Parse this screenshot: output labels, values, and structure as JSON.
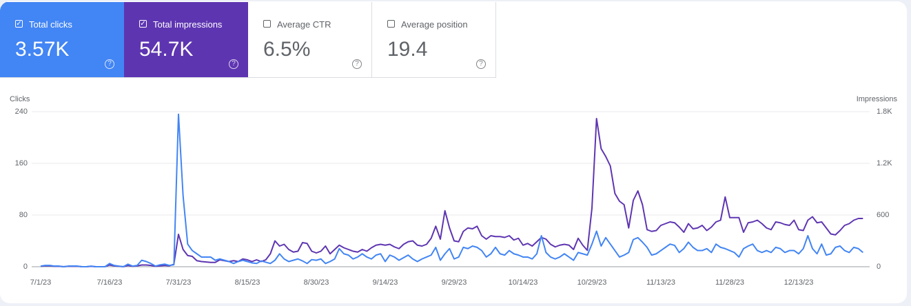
{
  "metric_cards": [
    {
      "label": "Total clicks",
      "value": "3.57K",
      "checked": true,
      "color": "#4285f4"
    },
    {
      "label": "Total impressions",
      "value": "54.7K",
      "checked": true,
      "color": "#5e35b1"
    },
    {
      "label": "Average CTR",
      "value": "6.5%",
      "checked": false,
      "color": "#ffffff"
    },
    {
      "label": "Average position",
      "value": "19.4",
      "checked": false,
      "color": "#ffffff"
    }
  ],
  "chart_data": {
    "type": "line",
    "categories": [
      "7/1/23",
      null,
      null,
      null,
      null,
      null,
      null,
      null,
      null,
      null,
      null,
      null,
      null,
      null,
      null,
      "7/16/23",
      null,
      null,
      null,
      null,
      null,
      null,
      null,
      null,
      null,
      null,
      null,
      null,
      null,
      null,
      "7/31/23",
      null,
      null,
      null,
      null,
      null,
      null,
      null,
      null,
      null,
      null,
      null,
      null,
      null,
      null,
      "8/15/23",
      null,
      null,
      null,
      null,
      null,
      null,
      null,
      null,
      null,
      null,
      null,
      null,
      null,
      null,
      "8/30/23",
      null,
      null,
      null,
      null,
      null,
      null,
      null,
      null,
      null,
      null,
      null,
      null,
      null,
      null,
      "9/14/23",
      null,
      null,
      null,
      null,
      null,
      null,
      null,
      null,
      null,
      null,
      null,
      null,
      null,
      null,
      "9/29/23",
      null,
      null,
      null,
      null,
      null,
      null,
      null,
      null,
      null,
      null,
      null,
      null,
      null,
      null,
      "10/14/23",
      null,
      null,
      null,
      null,
      null,
      null,
      null,
      null,
      null,
      null,
      null,
      null,
      null,
      null,
      "10/29/23",
      null,
      null,
      null,
      null,
      null,
      null,
      null,
      null,
      null,
      null,
      null,
      null,
      null,
      null,
      "11/13/23",
      null,
      null,
      null,
      null,
      null,
      null,
      null,
      null,
      null,
      null,
      null,
      null,
      null,
      null,
      "11/28/23",
      null,
      null,
      null,
      null,
      null,
      null,
      null,
      null,
      null,
      null,
      null,
      null,
      null,
      null,
      "12/13/23",
      null,
      null,
      null,
      null,
      null,
      null,
      null,
      null,
      null,
      null,
      null,
      null,
      null,
      null
    ],
    "series": [
      {
        "name": "Clicks",
        "color": "#4285f4",
        "axis": "y",
        "values": [
          1,
          2,
          2,
          1,
          1,
          0,
          1,
          1,
          1,
          0,
          0,
          1,
          0,
          0,
          0,
          5,
          2,
          1,
          0,
          4,
          1,
          2,
          10,
          8,
          5,
          1,
          3,
          4,
          2,
          3,
          236,
          110,
          35,
          25,
          20,
          15,
          15,
          15,
          10,
          12,
          10,
          8,
          5,
          8,
          10,
          8,
          6,
          5,
          9,
          7,
          5,
          10,
          20,
          12,
          8,
          10,
          12,
          9,
          5,
          11,
          10,
          12,
          5,
          8,
          12,
          28,
          20,
          18,
          12,
          15,
          20,
          15,
          12,
          18,
          20,
          8,
          18,
          15,
          10,
          14,
          18,
          12,
          8,
          12,
          15,
          18,
          30,
          10,
          20,
          28,
          12,
          15,
          30,
          28,
          32,
          30,
          25,
          15,
          20,
          30,
          20,
          18,
          25,
          20,
          18,
          15,
          15,
          12,
          20,
          48,
          22,
          15,
          12,
          15,
          20,
          15,
          10,
          22,
          20,
          18,
          35,
          55,
          32,
          45,
          35,
          25,
          15,
          18,
          22,
          42,
          45,
          38,
          30,
          18,
          20,
          25,
          30,
          35,
          33,
          22,
          28,
          38,
          30,
          25,
          25,
          28,
          22,
          35,
          30,
          28,
          25,
          22,
          15,
          28,
          32,
          35,
          25,
          22,
          25,
          22,
          30,
          28,
          22,
          25,
          25,
          20,
          28,
          48,
          28,
          20,
          35,
          18,
          20,
          30,
          32,
          25,
          22,
          30,
          28,
          22
        ]
      },
      {
        "name": "Impressions",
        "color": "#5e35b1",
        "axis": "y2",
        "values": [
          5,
          10,
          10,
          5,
          5,
          0,
          5,
          5,
          5,
          0,
          0,
          5,
          0,
          0,
          0,
          20,
          10,
          5,
          0,
          15,
          5,
          10,
          20,
          20,
          15,
          5,
          10,
          15,
          10,
          30,
          376,
          200,
          130,
          120,
          70,
          60,
          55,
          50,
          50,
          80,
          70,
          60,
          70,
          60,
          90,
          80,
          60,
          80,
          60,
          80,
          150,
          300,
          240,
          260,
          200,
          170,
          180,
          280,
          270,
          180,
          160,
          180,
          240,
          150,
          200,
          250,
          220,
          200,
          180,
          170,
          200,
          180,
          220,
          250,
          260,
          250,
          260,
          230,
          210,
          260,
          290,
          300,
          250,
          240,
          260,
          330,
          470,
          320,
          650,
          450,
          300,
          290,
          410,
          450,
          440,
          470,
          360,
          320,
          360,
          350,
          350,
          340,
          360,
          310,
          330,
          250,
          270,
          240,
          290,
          340,
          320,
          260,
          230,
          250,
          260,
          250,
          200,
          330,
          250,
          190,
          680,
          1720,
          1370,
          1280,
          1170,
          850,
          760,
          720,
          450,
          770,
          880,
          720,
          430,
          410,
          420,
          480,
          500,
          520,
          510,
          460,
          400,
          500,
          440,
          450,
          480,
          420,
          460,
          520,
          540,
          810,
          570,
          570,
          570,
          400,
          510,
          520,
          540,
          500,
          450,
          430,
          520,
          510,
          490,
          480,
          540,
          430,
          420,
          540,
          580,
          510,
          520,
          450,
          380,
          370,
          420,
          480,
          500,
          540,
          560,
          560
        ]
      }
    ],
    "ylim": [
      0,
      240
    ],
    "yticks": [
      0,
      80,
      160,
      240
    ],
    "y2lim": [
      0,
      1800
    ],
    "y2ticks": [
      0,
      600,
      {
        "value": 1200,
        "label": "1.2K"
      },
      {
        "value": 1800,
        "label": "1.8K"
      }
    ],
    "grid": true
  }
}
